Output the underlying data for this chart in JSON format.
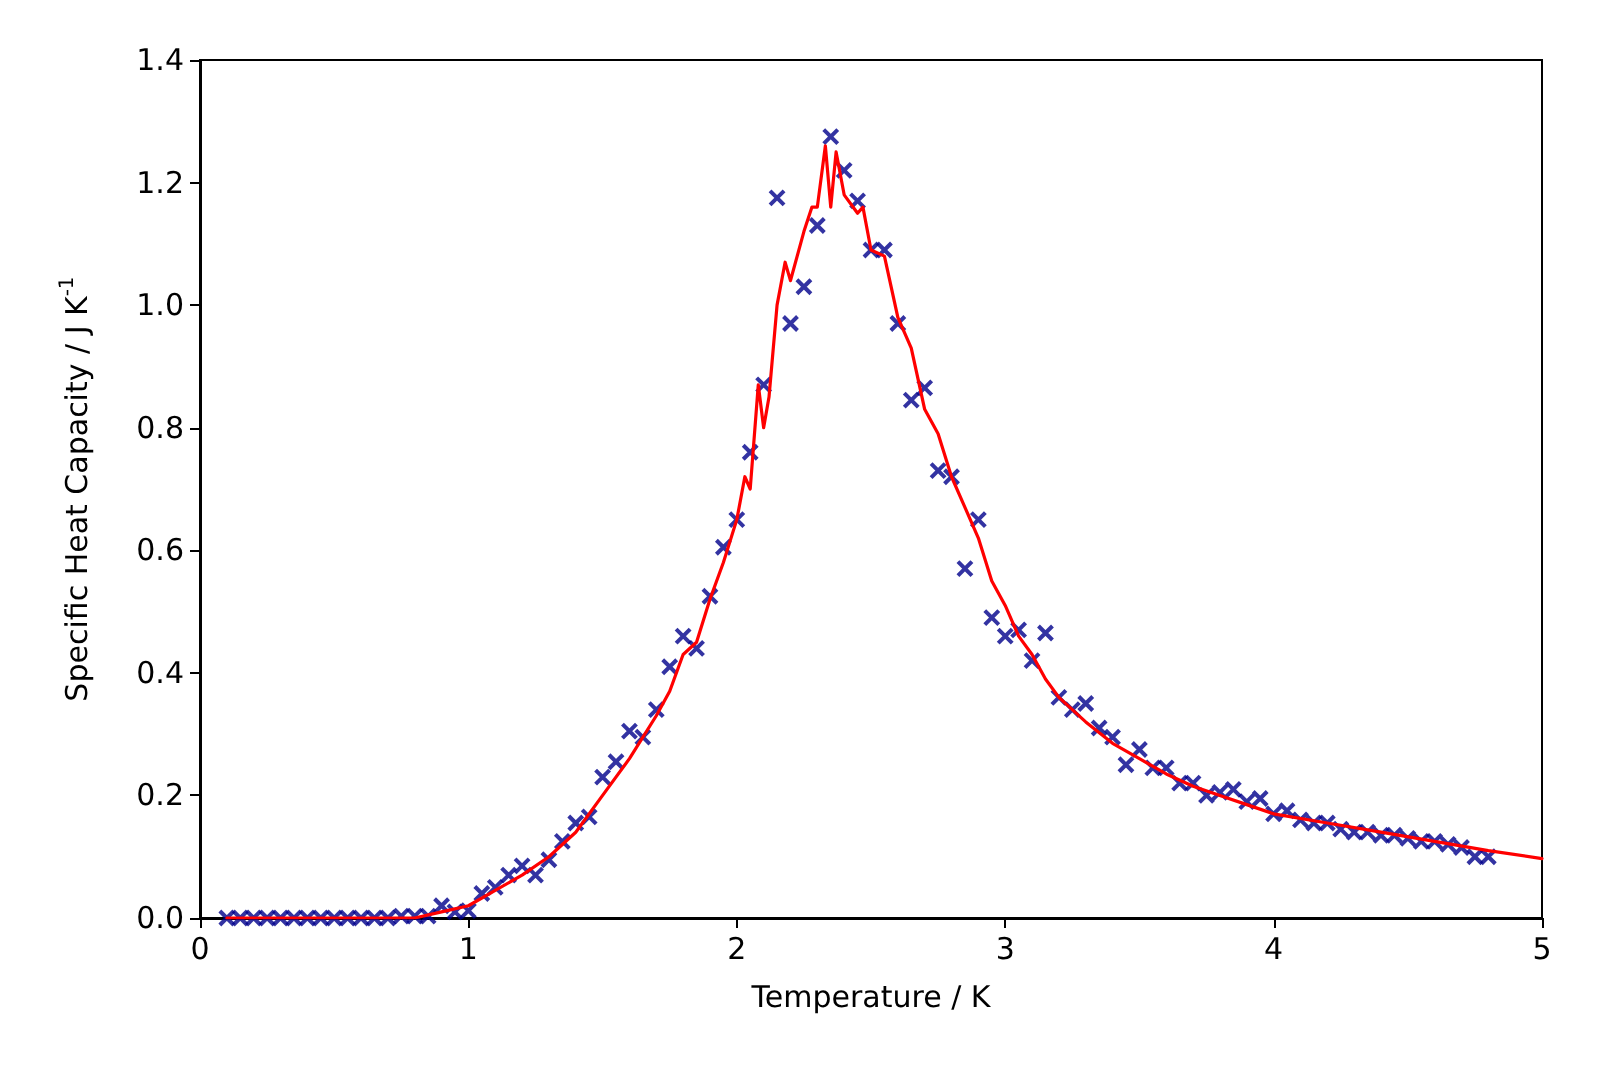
{
  "chart_data": {
    "type": "scatter",
    "xlabel": "Temperature / K",
    "ylabel": "Specific Heat Capacity / J K$^{-1}$",
    "xlim": [
      0,
      5
    ],
    "xticks": [
      0,
      1,
      2,
      3,
      4,
      5
    ],
    "ylim": [
      0,
      1.4
    ],
    "yticks": [
      {
        "value": 0,
        "label": "0.0"
      },
      {
        "value": 0.2,
        "label": "0.2"
      },
      {
        "value": 0.4,
        "label": "0.4"
      },
      {
        "value": 0.6,
        "label": "0.6"
      },
      {
        "value": 0.8,
        "label": "0.8"
      },
      {
        "value": 1.0,
        "label": "1.0"
      },
      {
        "value": 1.2,
        "label": "1.2"
      },
      {
        "value": 1.4,
        "label": "1.4"
      }
    ],
    "grid": false,
    "series": [
      {
        "type": "line",
        "color": "#ff0000",
        "line_style": "solid",
        "marker": "none",
        "x": [
          0.1,
          0.8,
          0.9,
          1.0,
          1.1,
          1.2,
          1.3,
          1.4,
          1.5,
          1.6,
          1.7,
          1.75,
          1.8,
          1.85,
          1.9,
          1.95,
          2.0,
          2.03,
          2.05,
          2.08,
          2.1,
          2.12,
          2.15,
          2.18,
          2.2,
          2.25,
          2.28,
          2.3,
          2.33,
          2.35,
          2.37,
          2.4,
          2.45,
          2.47,
          2.5,
          2.55,
          2.6,
          2.65,
          2.7,
          2.75,
          2.8,
          2.85,
          2.9,
          2.95,
          3.0,
          3.05,
          3.1,
          3.15,
          3.2,
          3.3,
          3.4,
          3.5,
          3.6,
          3.7,
          3.8,
          3.9,
          4.0,
          4.2,
          4.4,
          4.6,
          4.8,
          5.0
        ],
        "values": [
          0,
          0,
          0.01,
          0.02,
          0.045,
          0.07,
          0.1,
          0.14,
          0.2,
          0.26,
          0.33,
          0.37,
          0.43,
          0.45,
          0.52,
          0.58,
          0.65,
          0.72,
          0.7,
          0.87,
          0.8,
          0.85,
          1.0,
          1.07,
          1.04,
          1.12,
          1.16,
          1.16,
          1.26,
          1.16,
          1.25,
          1.18,
          1.15,
          1.16,
          1.09,
          1.08,
          0.98,
          0.93,
          0.83,
          0.79,
          0.72,
          0.67,
          0.62,
          0.55,
          0.51,
          0.46,
          0.43,
          0.39,
          0.36,
          0.32,
          0.285,
          0.26,
          0.235,
          0.215,
          0.2,
          0.185,
          0.17,
          0.155,
          0.14,
          0.125,
          0.11,
          0.097
        ]
      },
      {
        "color": "#00008b",
        "marker": "cross",
        "x": [
          0.1,
          0.15,
          0.2,
          0.25,
          0.3,
          0.35,
          0.4,
          0.45,
          0.5,
          0.55,
          0.6,
          0.65,
          0.7,
          0.75,
          0.8,
          0.85,
          0.9,
          0.95,
          1.0,
          1.05,
          1.1,
          1.15,
          1.2,
          1.25,
          1.3,
          1.35,
          1.4,
          1.45,
          1.5,
          1.55,
          1.6,
          1.65,
          1.7,
          1.75,
          1.8,
          1.85,
          1.9,
          1.95,
          2.0,
          2.05,
          2.1,
          2.15,
          2.2,
          2.25,
          2.3,
          2.35,
          2.4,
          2.45,
          2.5,
          2.55,
          2.6,
          2.65,
          2.7,
          2.75,
          2.8,
          2.85,
          2.9,
          2.95,
          3.0,
          3.05,
          3.1,
          3.15,
          3.2,
          3.25,
          3.3,
          3.35,
          3.4,
          3.45,
          3.5,
          3.55,
          3.6,
          3.65,
          3.7,
          3.75,
          3.8,
          3.85,
          3.9,
          3.95,
          4.0,
          4.05,
          4.1,
          4.15,
          4.2,
          4.25,
          4.3,
          4.35,
          4.4,
          4.45,
          4.5,
          4.55,
          4.6,
          4.65,
          4.7,
          4.75,
          4.8
        ],
        "values": [
          0,
          0,
          0,
          0,
          0,
          0,
          0,
          0,
          0,
          0,
          0,
          0,
          0,
          0.003,
          0.003,
          0.003,
          0.02,
          0.01,
          0.012,
          0.04,
          0.05,
          0.07,
          0.085,
          0.07,
          0.095,
          0.125,
          0.155,
          0.165,
          0.23,
          0.255,
          0.305,
          0.295,
          0.34,
          0.41,
          0.46,
          0.44,
          0.525,
          0.605,
          0.65,
          0.76,
          0.87,
          1.175,
          0.97,
          1.03,
          1.13,
          1.275,
          1.22,
          1.17,
          1.09,
          1.09,
          0.97,
          0.845,
          0.865,
          0.73,
          0.72,
          0.57,
          0.65,
          0.49,
          0.46,
          0.47,
          0.42,
          0.465,
          0.36,
          0.34,
          0.35,
          0.31,
          0.295,
          0.25,
          0.275,
          0.245,
          0.245,
          0.22,
          0.22,
          0.2,
          0.205,
          0.21,
          0.19,
          0.195,
          0.17,
          0.175,
          0.16,
          0.155,
          0.155,
          0.145,
          0.14,
          0.14,
          0.135,
          0.135,
          0.13,
          0.125,
          0.125,
          0.12,
          0.115,
          0.1,
          0.1
        ]
      }
    ]
  }
}
